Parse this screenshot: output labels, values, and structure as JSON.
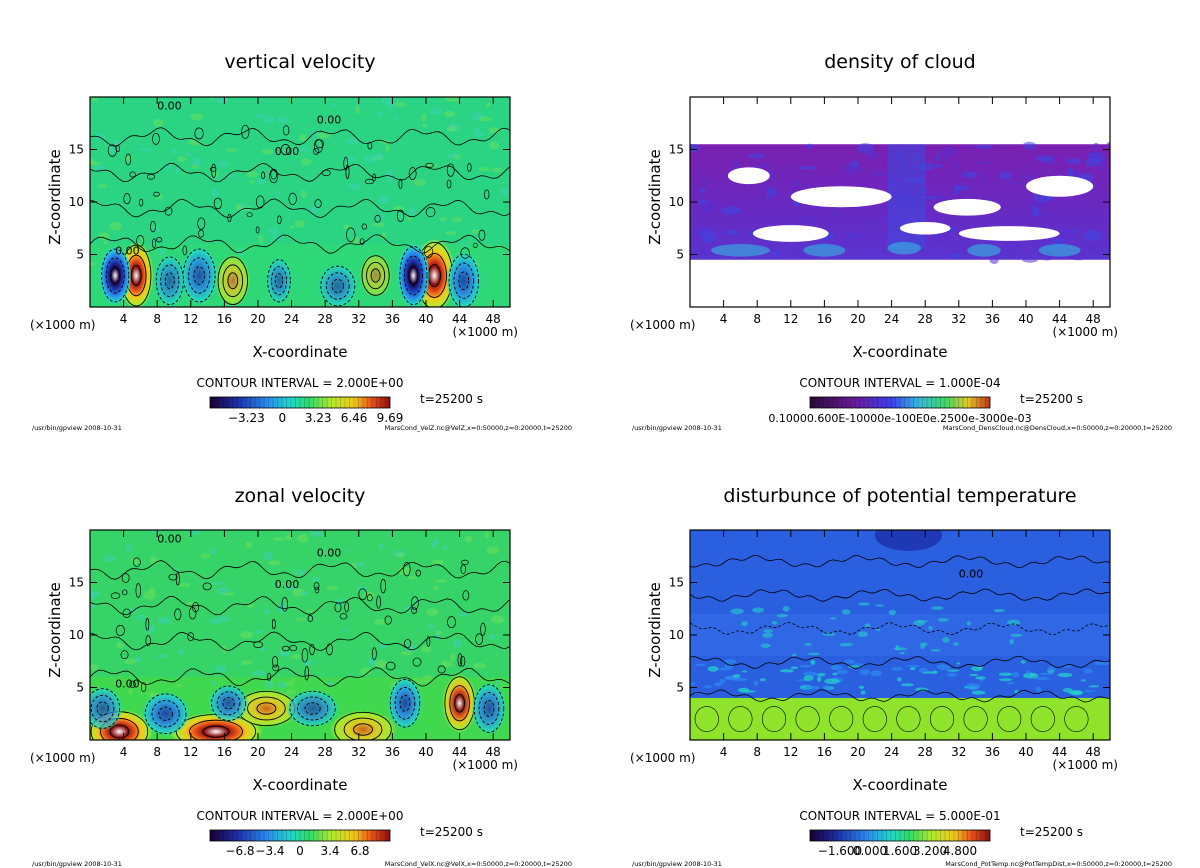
{
  "chart_data": [
    {
      "type": "heatmap",
      "title": "vertical velocity",
      "xlabel": "X-coordinate",
      "ylabel": "Z-coordinate",
      "x_unit_left": "(×1000 m)",
      "x_unit_right": "(×1000 m)",
      "xlim": [
        0,
        50
      ],
      "ylim": [
        0,
        20
      ],
      "xticks": [
        4,
        8,
        12,
        16,
        20,
        24,
        28,
        32,
        36,
        40,
        44,
        48
      ],
      "yticks": [
        5,
        10,
        15
      ],
      "contour_interval": "CONTOUR INTERVAL = 2.000E+00",
      "time": "t=25200 s",
      "colorbar_ticks": [
        "−3.23",
        "0",
        "3.23",
        "6.46",
        "9.69"
      ],
      "colorbar_tick_positions": [
        -3.23,
        0,
        3.23,
        6.46,
        9.69
      ],
      "colorbar_range": [
        -6.5,
        9.69
      ],
      "contour_labels": [
        "0.00"
      ],
      "footer_left": "/usr/bin/gpview  2008-10-31",
      "footer_right": "MarsCond_VelZ.nc@VelZ,x=0:50000,z=0:20000,t=25200",
      "colormap": "rainbow",
      "background_color": "#2ed877",
      "blobs": [
        {
          "x": 5.5,
          "z": 3.0,
          "rx": 1.3,
          "rz": 2.3,
          "sign": 1,
          "mag": 1.0
        },
        {
          "x": 3.0,
          "z": 3.0,
          "rx": 1.2,
          "rz": 2.0,
          "sign": -1,
          "mag": 1.0
        },
        {
          "x": 41.0,
          "z": 3.0,
          "rx": 1.6,
          "rz": 2.5,
          "sign": 1,
          "mag": 1.0
        },
        {
          "x": 38.5,
          "z": 3.0,
          "rx": 1.2,
          "rz": 2.2,
          "sign": -1,
          "mag": 1.0
        },
        {
          "x": 44.5,
          "z": 2.5,
          "rx": 1.3,
          "rz": 2.0,
          "sign": -1,
          "mag": 0.8
        },
        {
          "x": 13.0,
          "z": 3.0,
          "rx": 1.4,
          "rz": 2.0,
          "sign": -1,
          "mag": 0.7
        },
        {
          "x": 17.0,
          "z": 2.5,
          "rx": 1.3,
          "rz": 1.8,
          "sign": 1,
          "mag": 0.6
        },
        {
          "x": 22.5,
          "z": 2.5,
          "rx": 1.0,
          "rz": 1.6,
          "sign": -1,
          "mag": 0.5
        },
        {
          "x": 29.5,
          "z": 2.0,
          "rx": 1.5,
          "rz": 1.5,
          "sign": -1,
          "mag": 0.5
        },
        {
          "x": 9.5,
          "z": 2.5,
          "rx": 1.2,
          "rz": 1.8,
          "sign": -1,
          "mag": 0.5
        },
        {
          "x": 34.0,
          "z": 3.0,
          "rx": 1.2,
          "rz": 1.5,
          "sign": 1,
          "mag": 0.4
        }
      ]
    },
    {
      "type": "heatmap",
      "title": "density of cloud",
      "xlabel": "X-coordinate",
      "ylabel": "Z-coordinate",
      "x_unit_left": "(×1000 m)",
      "x_unit_right": "(×1000 m)",
      "xlim": [
        0,
        50
      ],
      "ylim": [
        0,
        20
      ],
      "xticks": [
        4,
        8,
        12,
        16,
        20,
        24,
        28,
        32,
        36,
        40,
        44,
        48
      ],
      "yticks": [
        5,
        10,
        15
      ],
      "contour_interval": "CONTOUR INTERVAL = 1.000E-04",
      "time": "t=25200 s",
      "colorbar_ticks_text": "0.10000.600E-10000e-100E0e.2500e-3000e-03",
      "footer_left": "/usr/bin/gpview  2008-10-31",
      "footer_right": "MarsCond_DensCloud.nc@DensCloud,x=0:50000,z=0:20000,t=25200",
      "colormap": "purple-blue",
      "cloud_layer_z": [
        4.5,
        15.5
      ],
      "clear_patches": [
        {
          "x": 18.0,
          "z": 10.5,
          "rx": 6.0,
          "rz": 1.0
        },
        {
          "x": 33.0,
          "z": 9.5,
          "rx": 4.0,
          "rz": 0.8
        },
        {
          "x": 12.0,
          "z": 7.0,
          "rx": 4.5,
          "rz": 0.8
        },
        {
          "x": 38.0,
          "z": 7.0,
          "rx": 6.0,
          "rz": 0.7
        },
        {
          "x": 7.0,
          "z": 12.5,
          "rx": 2.5,
          "rz": 0.8
        },
        {
          "x": 44.0,
          "z": 11.5,
          "rx": 4.0,
          "rz": 1.0
        },
        {
          "x": 28.0,
          "z": 7.5,
          "rx": 3.0,
          "rz": 0.6
        }
      ]
    },
    {
      "type": "heatmap",
      "title": "zonal velocity",
      "xlabel": "X-coordinate",
      "ylabel": "Z-coordinate",
      "x_unit_left": "(×1000 m)",
      "x_unit_right": "(×1000 m)",
      "xlim": [
        0,
        50
      ],
      "ylim": [
        0,
        20
      ],
      "xticks": [
        4,
        8,
        12,
        16,
        20,
        24,
        28,
        32,
        36,
        40,
        44,
        48
      ],
      "yticks": [
        5,
        10,
        15
      ],
      "contour_interval": "CONTOUR INTERVAL = 2.000E+00",
      "time": "t=25200 s",
      "colorbar_ticks": [
        "−6.8",
        "−3.4",
        "0",
        "3.4",
        "6.8"
      ],
      "colorbar_tick_positions": [
        -6.8,
        -3.4,
        0,
        3.4,
        6.8
      ],
      "colorbar_range": [
        -10.2,
        10.2
      ],
      "contour_labels": [
        "0.00"
      ],
      "footer_left": "/usr/bin/gpview  2008-10-31",
      "footer_right": "MarsCond_VelX.nc@VelX,x=0:50000,z=0:20000,t=25200",
      "colormap": "rainbow",
      "background_color": "#3fd84e",
      "blobs": [
        {
          "x": 3.5,
          "z": 0.8,
          "rx": 2.5,
          "rz": 1.5,
          "sign": 1,
          "mag": 1.0
        },
        {
          "x": 15.0,
          "z": 0.8,
          "rx": 3.5,
          "rz": 1.3,
          "sign": 1,
          "mag": 1.0
        },
        {
          "x": 21.0,
          "z": 3.0,
          "rx": 2.5,
          "rz": 1.3,
          "sign": 1,
          "mag": 0.8
        },
        {
          "x": 32.5,
          "z": 1.0,
          "rx": 2.5,
          "rz": 1.3,
          "sign": 1,
          "mag": 0.8
        },
        {
          "x": 44.0,
          "z": 3.5,
          "rx": 1.3,
          "rz": 2.0,
          "sign": 1,
          "mag": 0.9
        },
        {
          "x": 1.5,
          "z": 3.0,
          "rx": 1.5,
          "rz": 1.5,
          "sign": -1,
          "mag": 0.6
        },
        {
          "x": 9.0,
          "z": 2.5,
          "rx": 1.8,
          "rz": 1.5,
          "sign": -1,
          "mag": 0.8
        },
        {
          "x": 16.5,
          "z": 3.5,
          "rx": 1.5,
          "rz": 1.3,
          "sign": -1,
          "mag": 0.7
        },
        {
          "x": 26.5,
          "z": 3.0,
          "rx": 2.0,
          "rz": 1.3,
          "sign": -1,
          "mag": 0.6
        },
        {
          "x": 37.5,
          "z": 3.5,
          "rx": 1.3,
          "rz": 1.8,
          "sign": -1,
          "mag": 0.8
        },
        {
          "x": 47.5,
          "z": 3.0,
          "rx": 1.3,
          "rz": 1.8,
          "sign": -1,
          "mag": 0.7
        }
      ]
    },
    {
      "type": "heatmap",
      "title": "disturbunce of potential temperature",
      "xlabel": "X-coordinate",
      "ylabel": "Z-coordinate",
      "x_unit_left": "(×1000 m)",
      "x_unit_right": "(×1000 m)",
      "xlim": [
        0,
        50
      ],
      "ylim": [
        0,
        20
      ],
      "xticks": [
        4,
        8,
        12,
        16,
        20,
        24,
        28,
        32,
        36,
        40,
        44,
        48
      ],
      "yticks": [
        5,
        10,
        15
      ],
      "contour_interval": "CONTOUR INTERVAL = 5.000E-01",
      "time": "t=25200 s",
      "colorbar_ticks": [
        "−1.600",
        "0.000",
        "1.600",
        "3.200",
        "4.800"
      ],
      "colorbar_tick_positions": [
        -1.6,
        0.0,
        1.6,
        3.2,
        4.8
      ],
      "colorbar_range": [
        -3.2,
        6.4
      ],
      "contour_labels": [
        "0.00"
      ],
      "footer_left": "/usr/bin/gpview  2008-10-31",
      "footer_right": "MarsCond_PotTemp.nc@PotTempDist,x=0:50000,z=0:20000,t=25200",
      "colormap": "rainbow",
      "upper_color": "#2a5fe0",
      "lower_color": "#8fe32a",
      "boundary_z": 4.0
    }
  ]
}
